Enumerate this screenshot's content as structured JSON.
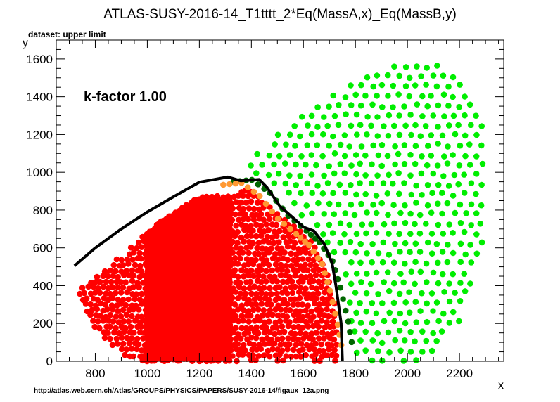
{
  "chart_data": {
    "type": "scatter",
    "title": "ATLAS-SUSY-2016-14_T1tttt_2*Eq(MassA,x)_Eq(MassB,y)",
    "subtitle": "dataset: upper limit",
    "xlabel": "x",
    "ylabel": "y",
    "xlim": [
      650,
      2370
    ],
    "ylim": [
      0,
      1700
    ],
    "x_ticks": [
      "800",
      "1000",
      "1200",
      "1400",
      "1600",
      "1800",
      "2000",
      "2200"
    ],
    "y_ticks": [
      "0",
      "200",
      "400",
      "600",
      "800",
      "1000",
      "1200",
      "1400",
      "1600"
    ],
    "annotation": "k-factor 1.00",
    "footer": "http://atlas.web.cern.ch/Atlas/GROUPS/PHYSICS/PAPERS/SUSY-2016-14/figaux_12a.png",
    "grid": false,
    "colors": {
      "excluded": "#ff0000",
      "border_excluded": "#ff9933",
      "border_allowed": "#006600",
      "allowed": "#00ee00",
      "contour": "#000000"
    },
    "regions": {
      "excluded_polygon": [
        [
          720,
          370
        ],
        [
          760,
          250
        ],
        [
          820,
          140
        ],
        [
          900,
          40
        ],
        [
          960,
          0
        ],
        [
          1730,
          0
        ],
        [
          1730,
          250
        ],
        [
          1690,
          480
        ],
        [
          1640,
          620
        ],
        [
          1600,
          680
        ],
        [
          1520,
          760
        ],
        [
          1450,
          860
        ],
        [
          1380,
          930
        ],
        [
          1330,
          880
        ],
        [
          1200,
          870
        ],
        [
          1050,
          740
        ],
        [
          900,
          560
        ],
        [
          780,
          430
        ]
      ],
      "dense_core": {
        "x_range": [
          1000,
          1320
        ],
        "y_range": [
          0,
          860
        ]
      },
      "allowed_polygon": [
        [
          1360,
          1000
        ],
        [
          1450,
          1150
        ],
        [
          1600,
          1330
        ],
        [
          1800,
          1480
        ],
        [
          1970,
          1600
        ],
        [
          2050,
          1600
        ],
        [
          2200,
          1520
        ],
        [
          2300,
          1300
        ],
        [
          2300,
          600
        ],
        [
          2200,
          200
        ],
        [
          2080,
          0
        ],
        [
          1800,
          0
        ],
        [
          1780,
          250
        ],
        [
          1760,
          500
        ],
        [
          1690,
          600
        ],
        [
          1600,
          750
        ],
        [
          1520,
          880
        ],
        [
          1440,
          980
        ]
      ],
      "border_band": [
        [
          1310,
          940
        ],
        [
          1380,
          950
        ],
        [
          1450,
          880
        ],
        [
          1520,
          760
        ],
        [
          1590,
          680
        ],
        [
          1640,
          620
        ],
        [
          1690,
          520
        ],
        [
          1720,
          380
        ],
        [
          1750,
          200
        ],
        [
          1770,
          40
        ]
      ]
    },
    "contour": [
      [
        720,
        505
      ],
      [
        800,
        600
      ],
      [
        900,
        700
      ],
      [
        1000,
        790
      ],
      [
        1100,
        870
      ],
      [
        1200,
        948
      ],
      [
        1310,
        975
      ],
      [
        1360,
        955
      ],
      [
        1430,
        962
      ],
      [
        1460,
        920
      ],
      [
        1510,
        820
      ],
      [
        1560,
        760
      ],
      [
        1600,
        710
      ],
      [
        1640,
        690
      ],
      [
        1680,
        620
      ],
      [
        1710,
        520
      ],
      [
        1725,
        400
      ],
      [
        1745,
        200
      ],
      [
        1750,
        0
      ]
    ]
  }
}
